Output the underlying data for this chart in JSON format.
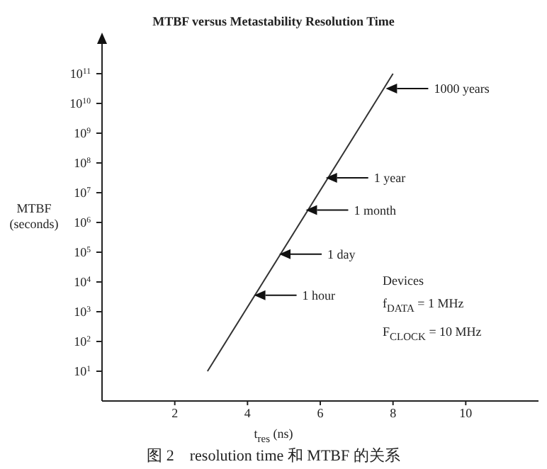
{
  "chart_data": {
    "type": "line",
    "title": "MTBF versus Metastability Resolution Time",
    "xlabel": "t$_{res}$  (ns)",
    "ylabel": "MTBF (seconds)",
    "series": [
      {
        "x": [
          2.9,
          8.0
        ],
        "values": [
          10,
          100000000000
        ],
        "color": "#333333"
      }
    ],
    "xlim": [
      0,
      12
    ],
    "xticks": [
      2,
      4,
      6,
      8,
      10
    ],
    "ylim": [
      1,
      1000000000000
    ],
    "log": true,
    "yticks": [
      {
        "value": 10,
        "label": "10$^{1}$"
      },
      {
        "value": 100,
        "label": "10$^{2}$"
      },
      {
        "value": 1000,
        "label": "10$^{3}$"
      },
      {
        "value": 10000,
        "label": "10$^{4}$"
      },
      {
        "value": 100000,
        "label": "10$^{5}$"
      },
      {
        "value": 1000000,
        "label": "10$^{6}$"
      },
      {
        "value": 10000000,
        "label": "10$^{7}$"
      },
      {
        "value": 100000000,
        "label": "10$^{8}$"
      },
      {
        "value": 1000000000,
        "label": "10$^{9}$"
      },
      {
        "value": 10000000000,
        "label": "10$^{10}$"
      },
      {
        "value": 100000000000,
        "label": "10$^{11}$"
      }
    ],
    "grid": false,
    "marker": "none",
    "line_style": "solid",
    "annotations": [
      {
        "text": "1000 years",
        "x": 7.8,
        "y": 31500000000
      },
      {
        "text": "1 year",
        "x": 6.15,
        "y": 31500000
      },
      {
        "text": "1 month",
        "x": 5.6,
        "y": 2600000
      },
      {
        "text": "1 day",
        "x": 4.87,
        "y": 86400
      },
      {
        "text": "1 hour",
        "x": 4.18,
        "y": 3600
      },
      "Devices",
      "f$_{DATA}$  = 1 MHz",
      "F$_{CLOCK}$  = 10 MHz",
      "图 2　resolution time 和 MTBF 的关系"
    ]
  }
}
